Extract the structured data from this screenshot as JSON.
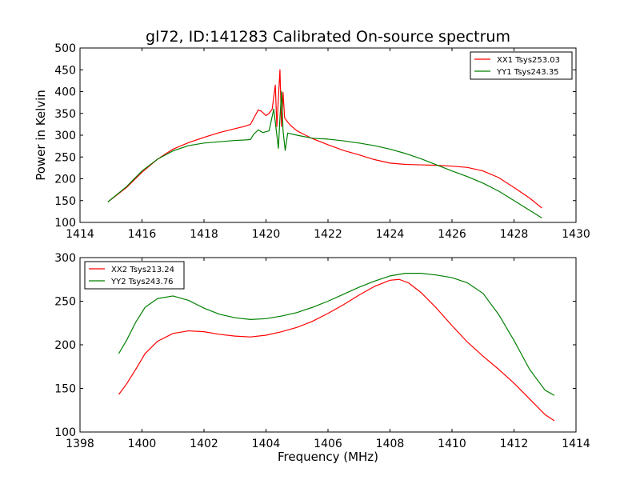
{
  "chart_data": [
    {
      "type": "line",
      "title": "gl72, ID:141283 Calibrated On-source spectrum",
      "xlabel": "",
      "ylabel": "Power in Kelvin",
      "xlim": [
        1414,
        1430
      ],
      "ylim": [
        100,
        500
      ],
      "xticks": [
        1414,
        1416,
        1418,
        1420,
        1422,
        1424,
        1426,
        1428,
        1430
      ],
      "yticks": [
        100,
        150,
        200,
        250,
        300,
        350,
        400,
        450,
        500
      ],
      "legend_position": "top-right",
      "series": [
        {
          "name": "XX1 Tsys253.03",
          "color": "#ff0000",
          "points": [
            [
              1414.9,
              147
            ],
            [
              1415.5,
              180
            ],
            [
              1416.0,
              215
            ],
            [
              1416.5,
              245
            ],
            [
              1417.0,
              268
            ],
            [
              1417.5,
              283
            ],
            [
              1418.0,
              295
            ],
            [
              1418.5,
              306
            ],
            [
              1419.0,
              315
            ],
            [
              1419.3,
              320
            ],
            [
              1419.5,
              325
            ],
            [
              1419.65,
              345
            ],
            [
              1419.75,
              358
            ],
            [
              1419.85,
              355
            ],
            [
              1420.0,
              345
            ],
            [
              1420.1,
              350
            ],
            [
              1420.2,
              360
            ],
            [
              1420.3,
              415
            ],
            [
              1420.35,
              320
            ],
            [
              1420.45,
              450
            ],
            [
              1420.5,
              320
            ],
            [
              1420.55,
              398
            ],
            [
              1420.6,
              340
            ],
            [
              1420.7,
              330
            ],
            [
              1420.8,
              322
            ],
            [
              1421.0,
              310
            ],
            [
              1421.5,
              292
            ],
            [
              1422.0,
              278
            ],
            [
              1422.5,
              265
            ],
            [
              1423.0,
              255
            ],
            [
              1423.5,
              244
            ],
            [
              1424.0,
              236
            ],
            [
              1424.5,
              233
            ],
            [
              1425.0,
              232
            ],
            [
              1425.5,
              231
            ],
            [
              1426.0,
              229
            ],
            [
              1426.5,
              226
            ],
            [
              1427.0,
              218
            ],
            [
              1427.5,
              203
            ],
            [
              1428.0,
              180
            ],
            [
              1428.5,
              156
            ],
            [
              1428.9,
              133
            ]
          ]
        },
        {
          "name": "YY1 Tsys243.35",
          "color": "#008000",
          "points": [
            [
              1414.9,
              147
            ],
            [
              1415.5,
              182
            ],
            [
              1416.0,
              218
            ],
            [
              1416.5,
              245
            ],
            [
              1417.0,
              264
            ],
            [
              1417.5,
              276
            ],
            [
              1418.0,
              282
            ],
            [
              1418.5,
              285
            ],
            [
              1419.0,
              288
            ],
            [
              1419.3,
              289
            ],
            [
              1419.5,
              290
            ],
            [
              1419.6,
              302
            ],
            [
              1419.75,
              312
            ],
            [
              1419.9,
              306
            ],
            [
              1420.1,
              310
            ],
            [
              1420.25,
              360
            ],
            [
              1420.35,
              300
            ],
            [
              1420.4,
              270
            ],
            [
              1420.45,
              340
            ],
            [
              1420.5,
              400
            ],
            [
              1420.55,
              310
            ],
            [
              1420.62,
              265
            ],
            [
              1420.7,
              305
            ],
            [
              1421.0,
              300
            ],
            [
              1421.5,
              293
            ],
            [
              1422.0,
              291
            ],
            [
              1422.5,
              287
            ],
            [
              1423.0,
              282
            ],
            [
              1423.5,
              276
            ],
            [
              1424.0,
              268
            ],
            [
              1424.5,
              258
            ],
            [
              1425.0,
              246
            ],
            [
              1425.5,
              232
            ],
            [
              1426.0,
              218
            ],
            [
              1426.5,
              205
            ],
            [
              1427.0,
              190
            ],
            [
              1427.5,
              172
            ],
            [
              1428.0,
              150
            ],
            [
              1428.5,
              128
            ],
            [
              1428.9,
              110
            ]
          ]
        }
      ]
    },
    {
      "type": "line",
      "title": "",
      "xlabel": "Frequency (MHz)",
      "ylabel": "",
      "xlim": [
        1398,
        1414
      ],
      "ylim": [
        100,
        300
      ],
      "xticks": [
        1398,
        1400,
        1402,
        1404,
        1406,
        1408,
        1410,
        1412,
        1414
      ],
      "yticks": [
        100,
        150,
        200,
        250,
        300
      ],
      "legend_position": "top-left",
      "series": [
        {
          "name": "XX2 Tsys213.24",
          "color": "#ff0000",
          "points": [
            [
              1399.25,
              143
            ],
            [
              1399.5,
              155
            ],
            [
              1399.8,
              172
            ],
            [
              1400.1,
              190
            ],
            [
              1400.5,
              204
            ],
            [
              1401.0,
              213
            ],
            [
              1401.5,
              216
            ],
            [
              1402.0,
              215
            ],
            [
              1402.5,
              212
            ],
            [
              1403.0,
              210
            ],
            [
              1403.5,
              209
            ],
            [
              1404.0,
              211
            ],
            [
              1404.5,
              215
            ],
            [
              1405.0,
              220
            ],
            [
              1405.5,
              227
            ],
            [
              1406.0,
              236
            ],
            [
              1406.5,
              246
            ],
            [
              1407.0,
              257
            ],
            [
              1407.5,
              267
            ],
            [
              1408.0,
              274
            ],
            [
              1408.3,
              275
            ],
            [
              1408.6,
              271
            ],
            [
              1409.0,
              260
            ],
            [
              1409.5,
              242
            ],
            [
              1410.0,
              222
            ],
            [
              1410.5,
              203
            ],
            [
              1411.0,
              187
            ],
            [
              1411.5,
              172
            ],
            [
              1412.0,
              156
            ],
            [
              1412.5,
              138
            ],
            [
              1413.0,
              120
            ],
            [
              1413.3,
              113
            ]
          ]
        },
        {
          "name": "YY2 Tsys243.76",
          "color": "#008000",
          "points": [
            [
              1399.25,
              190
            ],
            [
              1399.5,
              205
            ],
            [
              1399.8,
              226
            ],
            [
              1400.1,
              243
            ],
            [
              1400.5,
              253
            ],
            [
              1401.0,
              256
            ],
            [
              1401.5,
              251
            ],
            [
              1402.0,
              242
            ],
            [
              1402.5,
              235
            ],
            [
              1403.0,
              231
            ],
            [
              1403.5,
              229
            ],
            [
              1404.0,
              230
            ],
            [
              1404.5,
              233
            ],
            [
              1405.0,
              237
            ],
            [
              1405.5,
              243
            ],
            [
              1406.0,
              250
            ],
            [
              1406.5,
              258
            ],
            [
              1407.0,
              266
            ],
            [
              1407.5,
              273
            ],
            [
              1408.0,
              279
            ],
            [
              1408.5,
              282
            ],
            [
              1409.0,
              282
            ],
            [
              1409.5,
              280
            ],
            [
              1410.0,
              277
            ],
            [
              1410.5,
              271
            ],
            [
              1411.0,
              259
            ],
            [
              1411.5,
              235
            ],
            [
              1412.0,
              205
            ],
            [
              1412.5,
              172
            ],
            [
              1413.0,
              148
            ],
            [
              1413.3,
              142
            ]
          ]
        }
      ]
    }
  ]
}
